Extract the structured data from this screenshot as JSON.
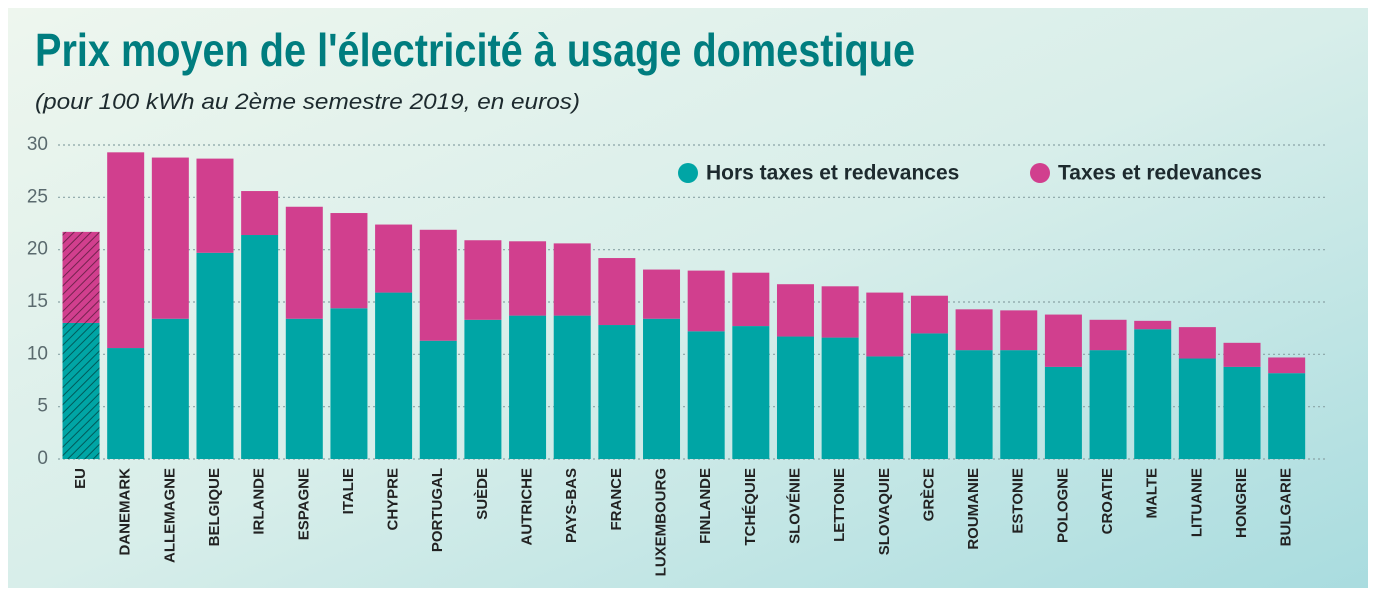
{
  "chart_data": {
    "type": "stacked_bar",
    "title": "Prix moyen de l'électricité à usage domestique",
    "subtitle": "(pour 100 kWh au 2ème semestre 2019, en euros)",
    "categories": [
      "EU",
      "DANEMARK",
      "ALLEMAGNE",
      "BELGIQUE",
      "IRLANDE",
      "ESPAGNE",
      "ITALIE",
      "CHYPRE",
      "PORTUGAL",
      "SUÈDE",
      "AUTRICHE",
      "PAYS-BAS",
      "FRANCE",
      "LUXEMBOURG",
      "FINLANDE",
      "TCHÉQUIE",
      "SLOVÉNIE",
      "LETTONIE",
      "SLOVAQUIE",
      "GRÈCE",
      "ROUMANIE",
      "ESTONIE",
      "POLOGNE",
      "CROATIE",
      "MALTE",
      "LITUANIE",
      "HONGRIE",
      "BULGARIE"
    ],
    "series": [
      {
        "name": "Hors taxes et redevances",
        "color": "#00a5a5",
        "values": [
          13.0,
          10.6,
          13.4,
          19.7,
          21.4,
          13.4,
          14.4,
          15.9,
          11.3,
          13.3,
          13.7,
          13.7,
          12.8,
          13.4,
          12.2,
          12.7,
          11.7,
          11.6,
          9.8,
          12.0,
          10.4,
          10.4,
          8.8,
          10.4,
          12.4,
          9.6,
          8.8,
          8.2
        ]
      },
      {
        "name": "Taxes et redevances",
        "color": "#d13f8e",
        "values": [
          8.7,
          18.7,
          15.4,
          9.0,
          4.2,
          10.7,
          9.1,
          6.5,
          10.6,
          7.6,
          7.1,
          6.9,
          6.4,
          4.7,
          5.8,
          5.1,
          5.0,
          4.9,
          6.1,
          3.6,
          3.9,
          3.8,
          5.0,
          2.9,
          0.8,
          3.0,
          2.3,
          1.5
        ]
      }
    ],
    "hatched_categories": [
      0
    ],
    "ylim": [
      0,
      30
    ],
    "yticks": [
      0,
      5,
      10,
      15,
      20,
      25,
      30
    ],
    "grid": true,
    "legend": "top-right"
  }
}
